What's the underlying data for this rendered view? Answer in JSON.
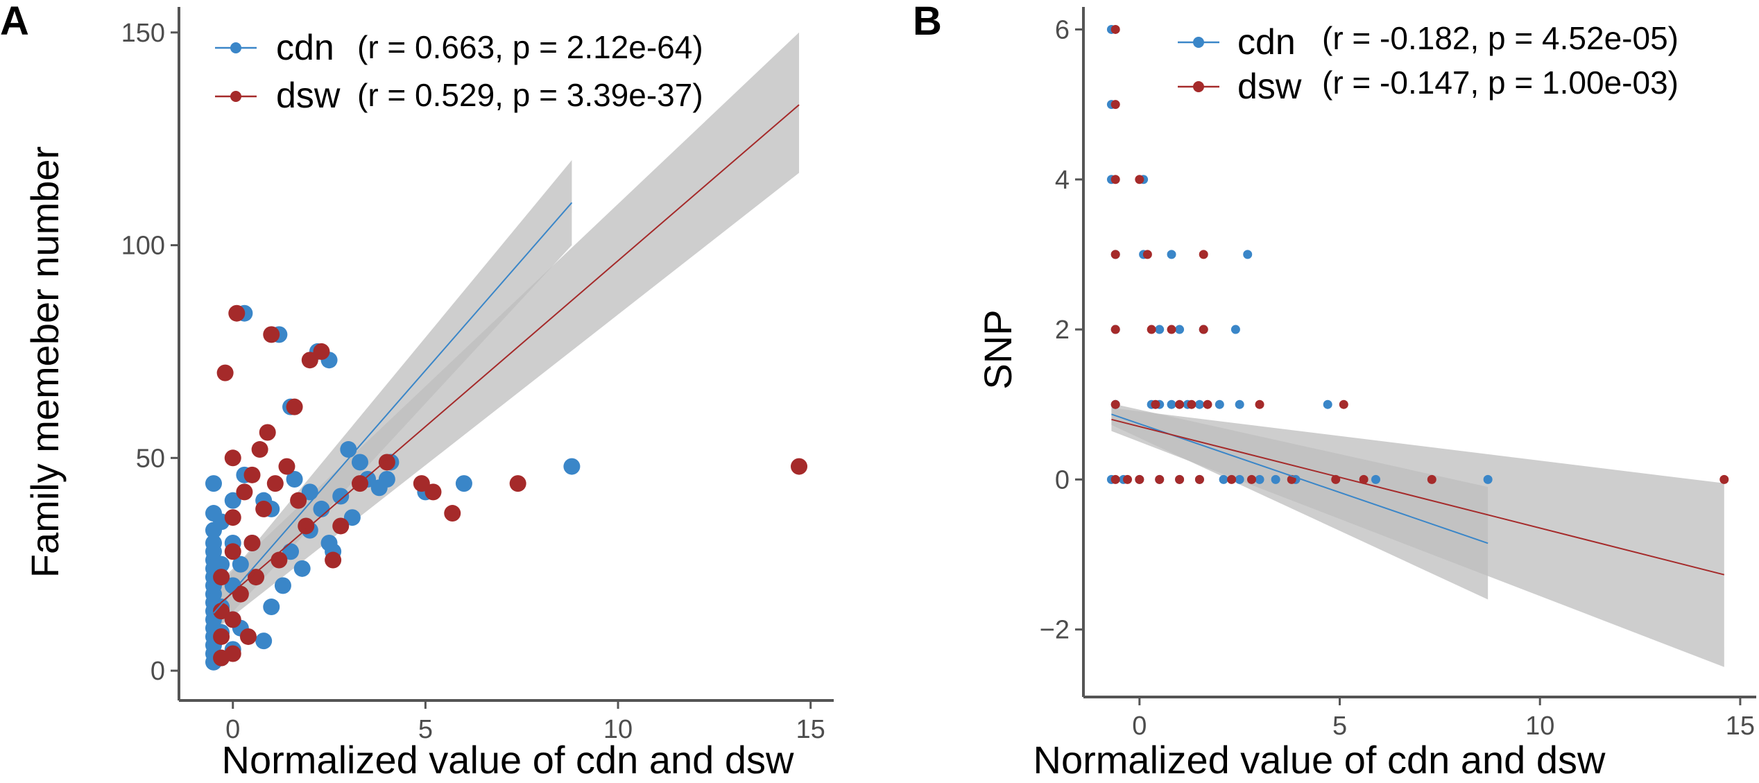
{
  "figure": {
    "panels": [
      "A",
      "B"
    ]
  },
  "colors": {
    "cdn": "#3a86c8",
    "dsw": "#a52a2a",
    "ci_band": "#bdbdbd",
    "axis": "#555555"
  },
  "chart_data": [
    {
      "panel": "A",
      "type": "scatter",
      "title": "",
      "xlabel": "Normalized value of cdn and dsw",
      "ylabel": "Family memeber number",
      "xlim": [
        -1.4,
        15.6
      ],
      "ylim": [
        -7,
        156
      ],
      "xticks": [
        0,
        5,
        10,
        15
      ],
      "yticks": [
        0,
        50,
        100,
        150
      ],
      "grid": false,
      "legend_position": "top-left",
      "series": [
        {
          "name": "cdn",
          "label": "cdn",
          "stats": "(r = 0.663, p = 2.12e-64)",
          "color_key": "cdn",
          "points": [
            [
              -0.5,
              2
            ],
            [
              -0.5,
              4
            ],
            [
              -0.5,
              6
            ],
            [
              -0.5,
              8
            ],
            [
              -0.5,
              10
            ],
            [
              -0.5,
              12
            ],
            [
              -0.5,
              14
            ],
            [
              -0.5,
              16
            ],
            [
              -0.5,
              18
            ],
            [
              -0.5,
              20
            ],
            [
              -0.5,
              22
            ],
            [
              -0.5,
              24
            ],
            [
              -0.5,
              26
            ],
            [
              -0.5,
              28
            ],
            [
              -0.5,
              30
            ],
            [
              -0.5,
              33
            ],
            [
              -0.5,
              37
            ],
            [
              -0.5,
              44
            ],
            [
              -0.3,
              3
            ],
            [
              -0.3,
              9
            ],
            [
              -0.3,
              15
            ],
            [
              -0.3,
              25
            ],
            [
              -0.3,
              35
            ],
            [
              0.0,
              5
            ],
            [
              0.0,
              12
            ],
            [
              0.0,
              20
            ],
            [
              0.0,
              30
            ],
            [
              0.0,
              40
            ],
            [
              0.2,
              10
            ],
            [
              0.2,
              25
            ],
            [
              0.3,
              84
            ],
            [
              0.3,
              46
            ],
            [
              0.5,
              30
            ],
            [
              0.8,
              7
            ],
            [
              0.8,
              40
            ],
            [
              1.0,
              15
            ],
            [
              1.0,
              38
            ],
            [
              1.2,
              79
            ],
            [
              1.3,
              20
            ],
            [
              1.5,
              28
            ],
            [
              1.5,
              62
            ],
            [
              1.6,
              45
            ],
            [
              1.8,
              24
            ],
            [
              2.0,
              33
            ],
            [
              2.0,
              42
            ],
            [
              2.2,
              75
            ],
            [
              2.3,
              38
            ],
            [
              2.5,
              73
            ],
            [
              2.5,
              30
            ],
            [
              2.6,
              28
            ],
            [
              2.8,
              41
            ],
            [
              3.0,
              52
            ],
            [
              3.1,
              36
            ],
            [
              3.3,
              49
            ],
            [
              3.5,
              45
            ],
            [
              3.8,
              43
            ],
            [
              4.0,
              45
            ],
            [
              4.1,
              49
            ],
            [
              5.0,
              42
            ],
            [
              6.0,
              44
            ],
            [
              8.8,
              48
            ]
          ],
          "fit": {
            "x": [
              -0.5,
              8.8
            ],
            "y": [
              13.5,
              110
            ],
            "ci_low_end": 100,
            "ci_high_end": 120
          }
        },
        {
          "name": "dsw",
          "label": "dsw",
          "stats": "(r = 0.529, p = 3.39e-37)",
          "color_key": "dsw",
          "points": [
            [
              -0.3,
              3
            ],
            [
              -0.3,
              8
            ],
            [
              -0.3,
              14
            ],
            [
              -0.3,
              22
            ],
            [
              -0.2,
              70
            ],
            [
              0.0,
              4
            ],
            [
              0.0,
              12
            ],
            [
              0.0,
              28
            ],
            [
              0.0,
              36
            ],
            [
              0.0,
              50
            ],
            [
              0.1,
              84
            ],
            [
              0.2,
              18
            ],
            [
              0.3,
              42
            ],
            [
              0.4,
              8
            ],
            [
              0.5,
              30
            ],
            [
              0.5,
              46
            ],
            [
              0.6,
              22
            ],
            [
              0.7,
              52
            ],
            [
              0.8,
              38
            ],
            [
              0.9,
              56
            ],
            [
              1.0,
              79
            ],
            [
              1.1,
              44
            ],
            [
              1.2,
              26
            ],
            [
              1.4,
              48
            ],
            [
              1.6,
              62
            ],
            [
              1.7,
              40
            ],
            [
              1.9,
              34
            ],
            [
              2.0,
              73
            ],
            [
              2.3,
              75
            ],
            [
              2.6,
              26
            ],
            [
              2.8,
              34
            ],
            [
              3.3,
              44
            ],
            [
              4.0,
              49
            ],
            [
              4.9,
              44
            ],
            [
              5.2,
              42
            ],
            [
              5.7,
              37
            ],
            [
              7.4,
              44
            ],
            [
              14.7,
              48
            ]
          ],
          "fit": {
            "x": [
              -0.5,
              14.7
            ],
            "y": [
              14.5,
              133
            ],
            "ci_low_end": 117,
            "ci_high_end": 150
          }
        }
      ]
    },
    {
      "panel": "B",
      "type": "scatter",
      "title": "",
      "xlabel": "Normalized value of cdn and dsw",
      "ylabel": "SNP",
      "xlim": [
        -1.4,
        15.4
      ],
      "ylim": [
        -2.9,
        6.3
      ],
      "xticks": [
        0,
        5,
        10,
        15
      ],
      "yticks": [
        -2,
        0,
        2,
        4,
        6
      ],
      "grid": false,
      "legend_position": "top-right",
      "series": [
        {
          "name": "cdn",
          "label": "cdn",
          "stats": "(r = -0.182, p = 4.52e-05)",
          "color_key": "cdn",
          "points": [
            [
              -0.7,
              6
            ],
            [
              -0.7,
              5
            ],
            [
              -0.7,
              4
            ],
            [
              -0.6,
              3
            ],
            [
              -0.6,
              2
            ],
            [
              -0.6,
              1
            ],
            [
              -0.7,
              0
            ],
            [
              -0.4,
              0
            ],
            [
              0.0,
              0
            ],
            [
              0.5,
              0
            ],
            [
              1.0,
              0
            ],
            [
              1.5,
              0
            ],
            [
              0.1,
              4
            ],
            [
              0.1,
              3
            ],
            [
              0.3,
              1
            ],
            [
              0.5,
              2
            ],
            [
              0.5,
              1
            ],
            [
              0.8,
              1
            ],
            [
              0.8,
              3
            ],
            [
              1.0,
              2
            ],
            [
              1.2,
              1
            ],
            [
              1.5,
              1
            ],
            [
              1.6,
              2
            ],
            [
              2.0,
              1
            ],
            [
              2.1,
              0
            ],
            [
              2.4,
              2
            ],
            [
              2.5,
              1
            ],
            [
              2.5,
              0
            ],
            [
              2.7,
              3
            ],
            [
              3.0,
              0
            ],
            [
              3.4,
              0
            ],
            [
              3.9,
              0
            ],
            [
              4.7,
              1
            ],
            [
              5.9,
              0
            ],
            [
              8.7,
              0
            ]
          ],
          "fit": {
            "x": [
              -0.7,
              8.7
            ],
            "y": [
              0.87,
              -0.85
            ],
            "ci_low_end": -1.6,
            "ci_high_end": -0.1
          }
        },
        {
          "name": "dsw",
          "label": "dsw",
          "stats": "(r = -0.147, p = 1.00e-03)",
          "color_key": "dsw",
          "points": [
            [
              -0.6,
              6
            ],
            [
              -0.6,
              5
            ],
            [
              -0.6,
              4
            ],
            [
              -0.6,
              3
            ],
            [
              -0.6,
              2
            ],
            [
              -0.6,
              1
            ],
            [
              -0.6,
              0
            ],
            [
              -0.3,
              0
            ],
            [
              0.0,
              0
            ],
            [
              0.5,
              0
            ],
            [
              1.0,
              0
            ],
            [
              1.5,
              0
            ],
            [
              0.0,
              4
            ],
            [
              0.2,
              3
            ],
            [
              0.3,
              2
            ],
            [
              0.4,
              1
            ],
            [
              0.8,
              2
            ],
            [
              1.0,
              1
            ],
            [
              1.3,
              1
            ],
            [
              1.6,
              3
            ],
            [
              1.6,
              2
            ],
            [
              1.7,
              1
            ],
            [
              2.3,
              0
            ],
            [
              2.8,
              0
            ],
            [
              3.0,
              1
            ],
            [
              3.8,
              0
            ],
            [
              4.9,
              0
            ],
            [
              5.1,
              1
            ],
            [
              5.6,
              0
            ],
            [
              7.3,
              0
            ],
            [
              14.6,
              0
            ]
          ],
          "fit": {
            "x": [
              -0.7,
              14.6
            ],
            "y": [
              0.8,
              -1.27
            ],
            "ci_low_end": -2.5,
            "ci_high_end": -0.05
          }
        }
      ]
    }
  ]
}
